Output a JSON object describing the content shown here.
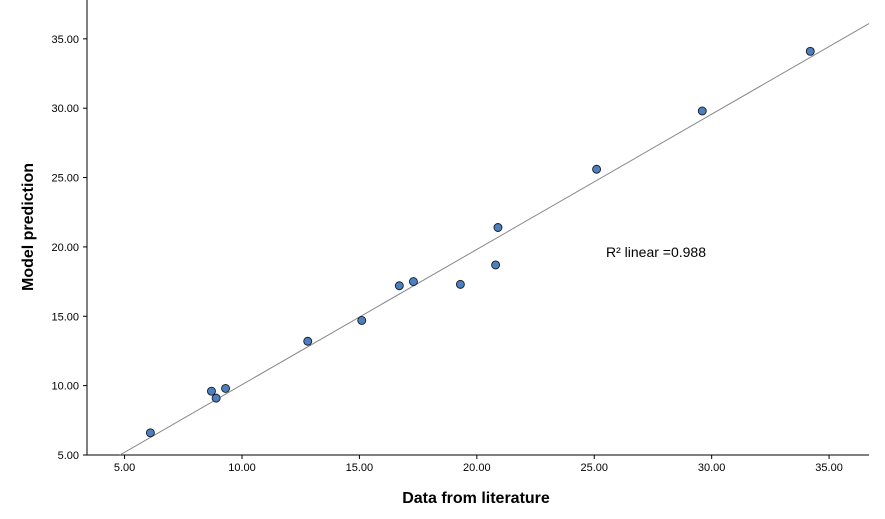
{
  "chart_data": {
    "type": "scatter",
    "xlabel": "Data from literature",
    "ylabel": "Model prediction",
    "xlim": [
      3.4,
      36.7
    ],
    "ylim": [
      5.0,
      37.8
    ],
    "x_ticks": [
      "5.00",
      "10.00",
      "15.00",
      "20.00",
      "25.00",
      "30.00",
      "35.00"
    ],
    "y_ticks": [
      "5.00",
      "10.00",
      "15.00",
      "20.00",
      "25.00",
      "30.00",
      "35.00"
    ],
    "grid": false,
    "series": [
      {
        "points": [
          {
            "x": 6.1,
            "y": 6.6
          },
          {
            "x": 8.7,
            "y": 9.6
          },
          {
            "x": 8.9,
            "y": 9.1
          },
          {
            "x": 9.3,
            "y": 9.8
          },
          {
            "x": 12.8,
            "y": 13.2
          },
          {
            "x": 15.1,
            "y": 14.7
          },
          {
            "x": 16.7,
            "y": 17.2
          },
          {
            "x": 17.3,
            "y": 17.5
          },
          {
            "x": 19.3,
            "y": 17.3
          },
          {
            "x": 20.8,
            "y": 18.7
          },
          {
            "x": 20.9,
            "y": 21.4
          },
          {
            "x": 25.1,
            "y": 25.6
          },
          {
            "x": 29.6,
            "y": 29.8
          },
          {
            "x": 34.2,
            "y": 34.1
          }
        ],
        "marker_color": "#4a7fc1",
        "marker_edge": "#1a1a1a"
      }
    ],
    "fit_line": {
      "x": [
        4.8,
        36.7
      ],
      "y": [
        5.0,
        36.1
      ],
      "color": "#888888"
    },
    "annotation": "R² linear =0.988"
  }
}
